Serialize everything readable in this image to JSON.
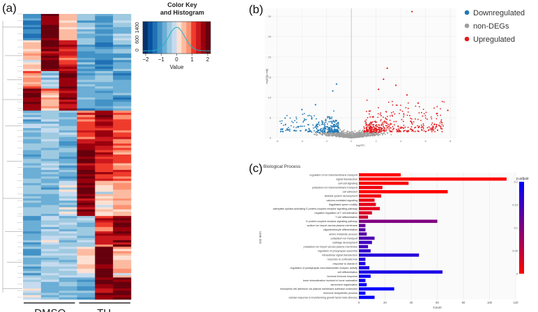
{
  "panels": {
    "a": "(a)",
    "b": "(b)",
    "c": "(c)"
  },
  "chart_data": [
    {
      "type": "heatmap",
      "panel": "(a)",
      "group_labels": [
        "DMSO",
        "TH"
      ],
      "color_key": {
        "title_line1": "Color Key",
        "title_line2": "and Histogram",
        "xlabel": "Value",
        "x_ticks": [
          "−2",
          "−1",
          "0",
          "1",
          "2"
        ],
        "y_ticks": [
          "0",
          "600",
          "1400"
        ],
        "colors": [
          "#08306b",
          "#08519c",
          "#2171b5",
          "#4292c6",
          "#6baed6",
          "#9ecae1",
          "#c6dbef",
          "#fde0d2",
          "#fcbba1",
          "#fc9272",
          "#ef3b2c",
          "#cb181d",
          "#99000d",
          "#67000d"
        ]
      },
      "columns": 6,
      "cluster_blocks": [
        {
          "rows": 12,
          "pattern": [
            -1.2,
            1.8,
            0.4,
            -0.6,
            -0.9,
            -0.4
          ]
        },
        {
          "rows": 14,
          "pattern": [
            0.3,
            1.9,
            1.2,
            -0.8,
            -1.1,
            -0.7
          ]
        },
        {
          "rows": 8,
          "pattern": [
            0.8,
            -0.4,
            1.9,
            -0.9,
            -0.6,
            -1.0
          ]
        },
        {
          "rows": 10,
          "pattern": [
            1.9,
            0.6,
            1.6,
            -0.7,
            -1.0,
            -0.9
          ]
        },
        {
          "rows": 14,
          "pattern": [
            -0.7,
            -0.4,
            -0.6,
            1.2,
            1.6,
            1.0
          ]
        },
        {
          "rows": 18,
          "pattern": [
            -0.6,
            -0.5,
            -0.8,
            1.9,
            1.3,
            0.9
          ]
        },
        {
          "rows": 16,
          "pattern": [
            -0.5,
            -0.6,
            -0.3,
            1.8,
            0.2,
            0.5
          ]
        },
        {
          "rows": 14,
          "pattern": [
            -0.8,
            -0.3,
            -0.5,
            -0.4,
            1.2,
            1.7
          ]
        },
        {
          "rows": 14,
          "pattern": [
            -0.6,
            -0.5,
            -0.4,
            0.3,
            1.9,
            0.4
          ]
        },
        {
          "rows": 10,
          "pattern": [
            -0.2,
            -0.7,
            -0.6,
            -0.9,
            1.7,
            1.9
          ]
        }
      ]
    },
    {
      "type": "scatter",
      "panel": "(b)",
      "xlabel": "log2FC",
      "ylabel": "-log10(p.adj)",
      "xlim": [
        -7,
        8.5
      ],
      "ylim": [
        0,
        32
      ],
      "x_ticks": [
        -6,
        -4,
        -2,
        0,
        2,
        4,
        6,
        8
      ],
      "y_ticks": [
        0,
        5,
        10,
        15,
        20,
        25,
        30
      ],
      "series": [
        {
          "name": "Downregulated",
          "color": "#1f78b4"
        },
        {
          "name": "non-DEGs",
          "color": "#9e9e9e"
        },
        {
          "name": "Upregulated",
          "color": "#e31a1c"
        }
      ],
      "highlight_points": [
        {
          "x": 4.9,
          "y": 31.2,
          "series": "Upregulated"
        },
        {
          "x": 2.9,
          "y": 17.2,
          "series": "Upregulated"
        },
        {
          "x": 2.6,
          "y": 14.5,
          "series": "Upregulated"
        },
        {
          "x": 3.6,
          "y": 13.0,
          "series": "Upregulated"
        },
        {
          "x": 2.2,
          "y": 12.0,
          "series": "Upregulated"
        },
        {
          "x": 4.5,
          "y": 10.6,
          "series": "Upregulated"
        },
        {
          "x": 5.4,
          "y": 8.6,
          "series": "Upregulated"
        },
        {
          "x": -1.2,
          "y": 13.3,
          "series": "Downregulated"
        },
        {
          "x": -1.5,
          "y": 11.6,
          "series": "Downregulated"
        },
        {
          "x": -2.9,
          "y": 8.2,
          "series": "Downregulated"
        },
        {
          "x": -4.0,
          "y": 7.0,
          "series": "Downregulated"
        },
        {
          "x": 7.8,
          "y": 6.8,
          "series": "Upregulated"
        },
        {
          "x": 6.9,
          "y": 6.0,
          "series": "Upregulated"
        }
      ]
    },
    {
      "type": "bar",
      "panel": "(c)",
      "orientation": "horizontal",
      "title": "Biological Process",
      "xlabel": "Count",
      "ylabel": "GO term",
      "xlim": [
        0,
        120
      ],
      "x_ticks": [
        0,
        20,
        40,
        60,
        80,
        100,
        120
      ],
      "color_legend": {
        "title": "p.adjust",
        "ticks": [
          "0.2",
          "0.15",
          "0.1",
          "0.05",
          "0"
        ]
      },
      "categories": [
        "regulation of ion transmembrane transport",
        "signal transduction",
        "cell-cell signaling",
        "potassium ion transmembrane transport",
        "cell adhesion",
        "skeletal system development",
        "calcium-mediated signaling",
        "flagellated sperm motility",
        "adenylate cyclase-activating G protein-coupled receptor signaling pathway",
        "negative regulation of T cell activation",
        "T cell differentiation",
        "G protein-coupled receptor signaling pathway",
        "sodium ion import across plasma membrane",
        "oligodendrocyte differentiation",
        "amine metabolic process",
        "potassium ion transport",
        "cartilage development",
        "potassium ion import across plasma membrane",
        "regulation of presynapse assembly",
        "intracellular signal transduction",
        "response to corticosterone",
        "response to vitamin E",
        "regulation of postsynaptic neurotransmitter receptor activity",
        "cell differentiation",
        "humoral immune response",
        "bone mineralization involved in bone maturation",
        "sarcomere organization",
        "homophilic cell adhesion via plasma membrane adhesion molecules",
        "hormone biosynthetic process",
        "cellular response to transforming growth factor beta stimulus"
      ],
      "values": [
        32,
        113,
        38,
        18,
        68,
        17,
        12,
        13,
        16,
        10,
        7,
        60,
        5,
        5,
        6,
        12,
        10,
        7,
        9,
        46,
        5,
        5,
        8,
        64,
        9,
        5,
        6,
        27,
        5,
        12
      ],
      "p_adjust": [
        0.0,
        0.0,
        0.005,
        0.01,
        0.0,
        0.01,
        0.015,
        0.02,
        0.02,
        0.03,
        0.04,
        0.1,
        0.12,
        0.13,
        0.13,
        0.14,
        0.15,
        0.15,
        0.16,
        0.17,
        0.17,
        0.18,
        0.18,
        0.18,
        0.19,
        0.19,
        0.19,
        0.2,
        0.2,
        0.2
      ]
    }
  ]
}
